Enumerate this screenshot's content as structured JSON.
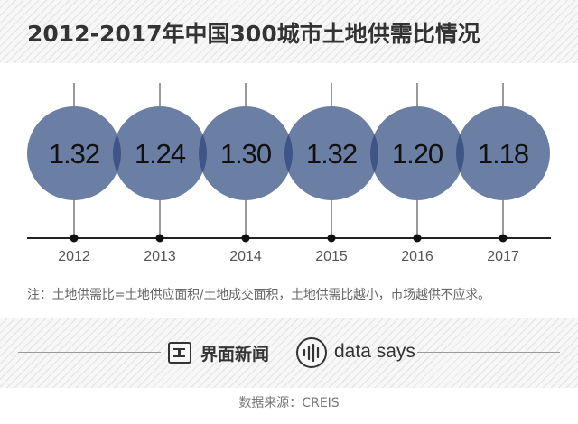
{
  "header": {
    "title": "2012-2017年中国300城市土地供需比情况"
  },
  "chart_data": {
    "type": "bubble",
    "title": "2012-2017年中国300城市土地供需比情况",
    "categories": [
      "2012",
      "2013",
      "2014",
      "2015",
      "2016",
      "2017"
    ],
    "values": [
      1.32,
      1.24,
      1.3,
      1.32,
      1.2,
      1.18
    ],
    "labels": [
      "1.32",
      "1.24",
      "1.30",
      "1.32",
      "1.20",
      "1.18"
    ],
    "series": [
      {
        "values": [
          1.32,
          1.24,
          1.3,
          1.32,
          1.2,
          1.18
        ]
      }
    ],
    "grid": false,
    "colors": {
      "bubble": "#6b7ea3",
      "overlap": "#3f5585",
      "axis": "#222222"
    }
  },
  "note": "注：土地供需比=土地供应面积/土地成交面积，土地供需比越小，市场越供不应求。",
  "footer": {
    "brand_cn": "界面新闻",
    "brand_en": "data says",
    "source": "数据来源：CREIS"
  }
}
